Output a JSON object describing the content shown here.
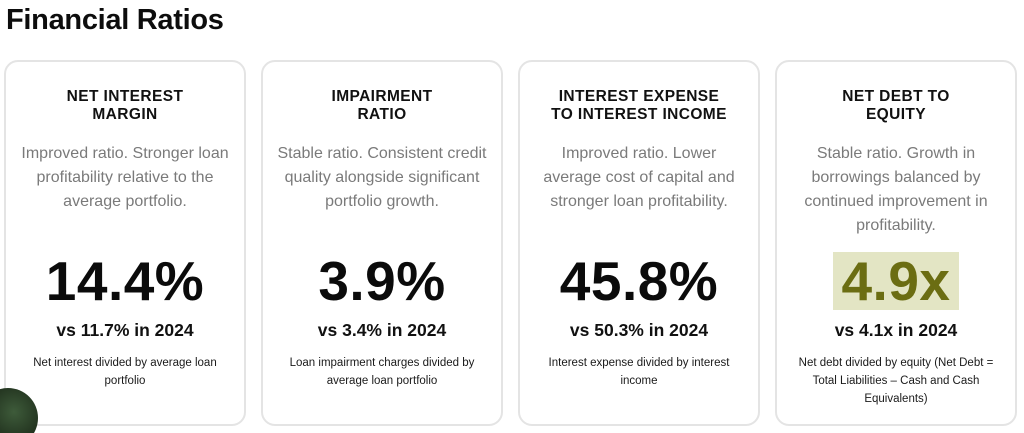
{
  "page": {
    "title": "Financial Ratios"
  },
  "cards": [
    {
      "title_line1": "NET INTEREST",
      "title_line2": "MARGIN",
      "description": "Improved ratio. Stronger loan profitability relative to the average portfolio.",
      "value": "14.4%",
      "comparison": "vs 11.7% in 2024",
      "note": "Net interest divided by average loan portfolio"
    },
    {
      "title_line1": "IMPAIRMENT",
      "title_line2": "RATIO",
      "description": "Stable ratio. Consistent credit quality alongside significant portfolio growth.",
      "value": "3.9%",
      "comparison": "vs 3.4% in 2024",
      "note": "Loan impairment charges divided by average loan portfolio"
    },
    {
      "title_line1": "INTEREST EXPENSE",
      "title_line2": "TO INTEREST INCOME",
      "description": "Improved ratio. Lower average cost of capital and stronger loan profitability.",
      "value": "45.8%",
      "comparison": "vs 50.3% in 2024",
      "note": "Interest expense divided by interest income"
    },
    {
      "title_line1": "NET DEBT TO",
      "title_line2": "EQUITY",
      "description": "Stable ratio. Growth in borrowings balanced by continued improvement in profitability.",
      "value": "4.9x",
      "comparison": "vs 4.1x in 2024",
      "note": "Net debt divided by equity (Net Debt = Total Liabilities – Cash and Cash Equivalents)"
    }
  ],
  "colors": {
    "highlight_bg": "#e3e5c4",
    "highlight_text": "#6b6d12",
    "card_border": "#e4e4e4",
    "description_text": "#7a7a7a"
  }
}
